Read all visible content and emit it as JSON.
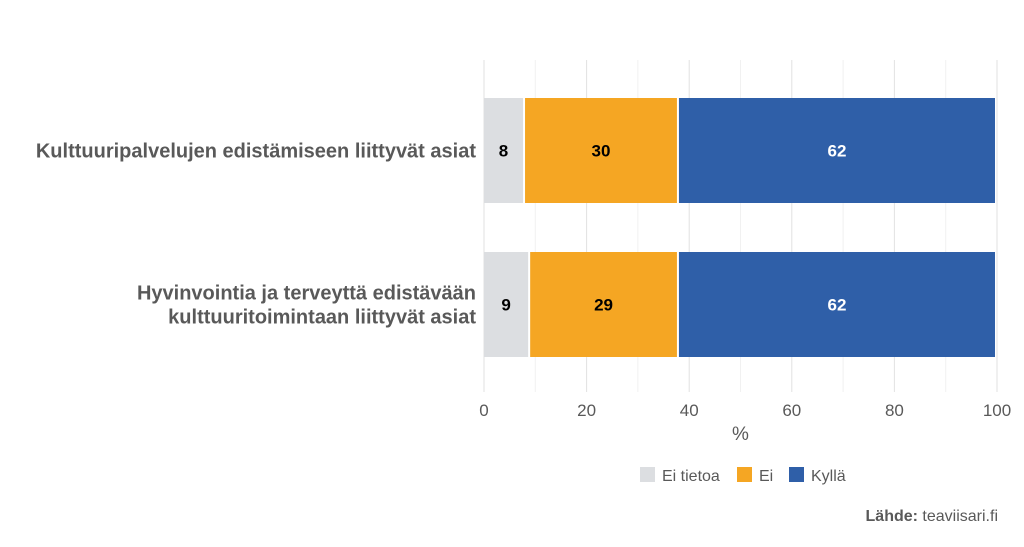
{
  "chart_data": {
    "type": "bar",
    "orientation": "horizontal",
    "stacked": true,
    "categories": [
      [
        "Kulttuuripalvelujen edistämiseen liittyvät asiat"
      ],
      [
        "Hyvinvointia ja terveyttä edistävään",
        "kulttuuritoimintaan liittyvät asiat"
      ]
    ],
    "series": [
      {
        "name": "Ei tietoa",
        "values": [
          8,
          9
        ],
        "color": "#dcdee1",
        "label_color": "#000000"
      },
      {
        "name": "Ei",
        "values": [
          30,
          29
        ],
        "color": "#f5a623",
        "label_color": "#000000"
      },
      {
        "name": "Kyllä",
        "values": [
          62,
          62
        ],
        "color": "#2f5fa8",
        "label_color": "#ffffff"
      }
    ],
    "xlabel": "%",
    "xlim": [
      0,
      100
    ],
    "xticks": [
      0,
      20,
      40,
      60,
      80,
      100
    ],
    "grid": true,
    "legend": "bottom"
  },
  "source": {
    "label": "Lähde:",
    "value": " teaviisari.fi"
  }
}
